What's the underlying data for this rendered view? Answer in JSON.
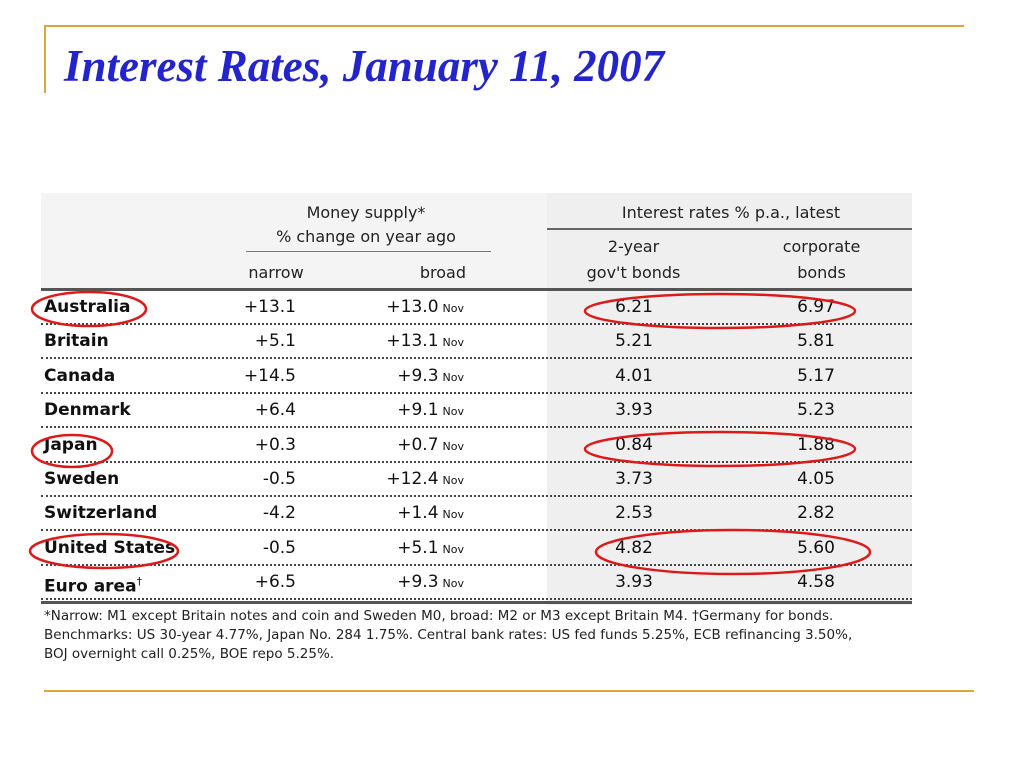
{
  "slide": {
    "title": "Interest Rates, January 11, 2007"
  },
  "colors": {
    "title": "#2424cc",
    "accent_rule": "#d8a73a",
    "highlight_oval": "#dd1a1a"
  },
  "table": {
    "group_money": [
      "Money supply*",
      "% change on year ago"
    ],
    "group_rates": "Interest rates % p.a., latest",
    "col_narrow": "narrow",
    "col_broad": "broad",
    "col_gov": [
      "2-year",
      "gov't bonds"
    ],
    "col_corp": [
      "corporate",
      "bonds"
    ],
    "rows": [
      {
        "country": "Australia",
        "narrow": "+13.1",
        "broad": "+13.0",
        "month": "Nov",
        "gov": "6.21",
        "corp": "6.97",
        "highlighted": true
      },
      {
        "country": "Britain",
        "narrow": "+5.1",
        "broad": "+13.1",
        "month": "Nov",
        "gov": "5.21",
        "corp": "5.81",
        "highlighted": false
      },
      {
        "country": "Canada",
        "narrow": "+14.5",
        "broad": "+9.3",
        "month": "Nov",
        "gov": "4.01",
        "corp": "5.17",
        "highlighted": false
      },
      {
        "country": "Denmark",
        "narrow": "+6.4",
        "broad": "+9.1",
        "month": "Nov",
        "gov": "3.93",
        "corp": "5.23",
        "highlighted": false
      },
      {
        "country": "Japan",
        "narrow": "+0.3",
        "broad": "+0.7",
        "month": "Nov",
        "gov": "0.84",
        "corp": "1.88",
        "highlighted": true
      },
      {
        "country": "Sweden",
        "narrow": "-0.5",
        "broad": "+12.4",
        "month": "Nov",
        "gov": "3.73",
        "corp": "4.05",
        "highlighted": false
      },
      {
        "country": "Switzerland",
        "narrow": "-4.2",
        "broad": "+1.4",
        "month": "Nov",
        "gov": "2.53",
        "corp": "2.82",
        "highlighted": false
      },
      {
        "country": "United States",
        "narrow": "-0.5",
        "broad": "+5.1",
        "month": "Nov",
        "gov": "4.82",
        "corp": "5.60",
        "highlighted": true
      },
      {
        "country": "Euro area",
        "country_mark": "†",
        "narrow": "+6.5",
        "broad": "+9.3",
        "month": "Nov",
        "gov": "3.93",
        "corp": "4.58",
        "highlighted": false
      }
    ],
    "footnotes": [
      "*Narrow: M1 except Britain notes and coin and Sweden M0, broad: M2 or M3 except Britain M4. †Germany for bonds.",
      "Benchmarks: US 30-year 4.77%, Japan No. 284 1.75%. Central bank rates: US fed funds 5.25%, ECB refinancing 3.50%,",
      "BOJ overnight call 0.25%, BOE repo 5.25%."
    ]
  }
}
